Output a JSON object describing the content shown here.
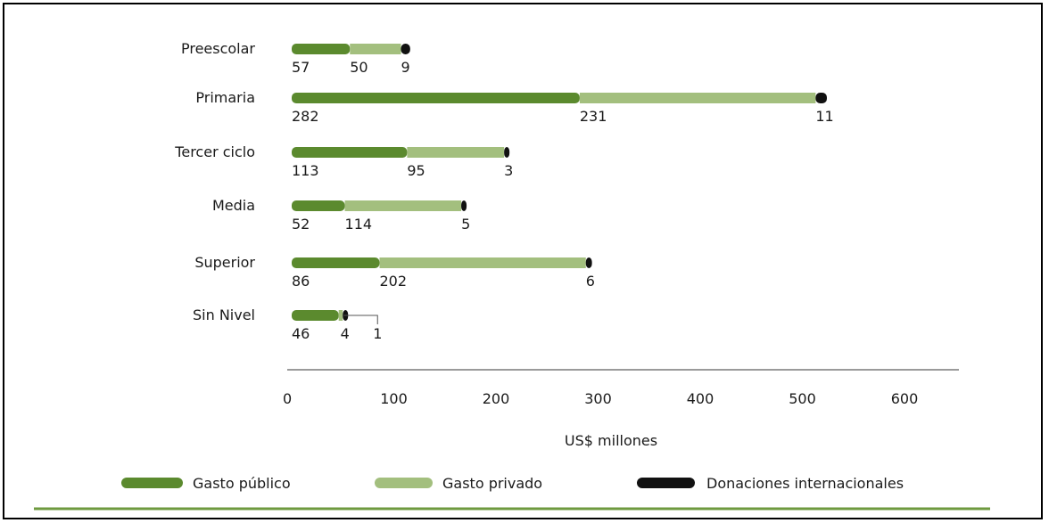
{
  "colors": {
    "publico": "#5b8a2e",
    "privado": "#a3bf7e",
    "donaciones": "#111111",
    "axis": "#9a9a9a",
    "footer_rule": "#6e9a3f"
  },
  "chart_data": {
    "type": "bar",
    "orientation": "horizontal",
    "stacked": true,
    "categories": [
      "Preescolar",
      "Primaria",
      "Tercer ciclo",
      "Media",
      "Superior",
      "Sin Nivel"
    ],
    "series": [
      {
        "name": "Gasto público",
        "values": [
          57,
          282,
          113,
          52,
          86,
          46
        ]
      },
      {
        "name": "Gasto privado",
        "values": [
          50,
          231,
          95,
          114,
          202,
          4
        ]
      },
      {
        "name": "Donaciones internacionales",
        "values": [
          9,
          11,
          3,
          5,
          6,
          1
        ]
      }
    ],
    "xlabel": "US$ millones",
    "xticks": [
      "0",
      "100",
      "200",
      "300",
      "400",
      "500",
      "600"
    ],
    "xlim": [
      0,
      600
    ],
    "grid": false,
    "legend": "bottom"
  }
}
